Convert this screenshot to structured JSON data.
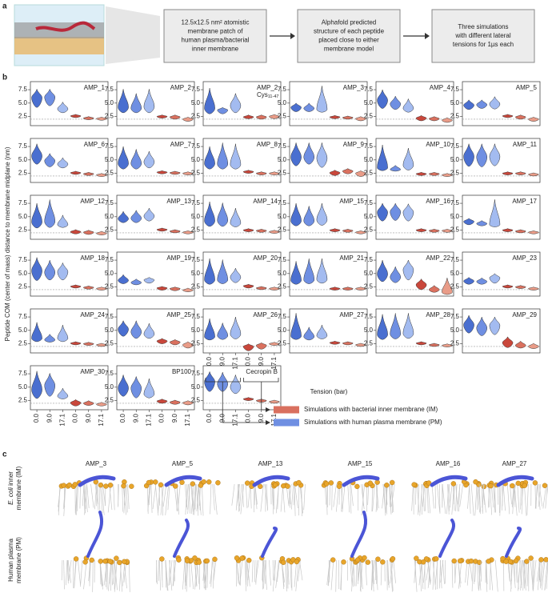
{
  "panel_letters": {
    "a": "a",
    "b": "b",
    "c": "c"
  },
  "panel_a": {
    "boxes": [
      [
        "12.5x12.5 nm² atomistic",
        "membrane patch of",
        "human plasma/bacterial",
        "inner membrane"
      ],
      [
        "Alphafold predicted",
        "structure of each peptide",
        "placed close to either",
        "membrane model"
      ],
      [
        "Three simulations",
        "with different lateral",
        "tensions for 1µs each"
      ]
    ]
  },
  "panel_b": {
    "y_label": "Peptide COM (center of mass) distance to membrane midplane (nm)",
    "x_label": "Tension (bar)",
    "categories": [
      "0.0",
      "9.0",
      "17.1",
      "0.0",
      "9.0",
      "17.1"
    ],
    "colors": [
      "#4a6fd0",
      "#6f8fe2",
      "#a3bbf0",
      "#c9473b",
      "#da715f",
      "#e99c88"
    ],
    "ylim": [
      0.8,
      9.0
    ],
    "yticks": [
      2.5,
      {
        "value": 5,
        "label": "5.0"
      },
      7.5
    ],
    "reference_line": 2.0,
    "legend": [
      {
        "name": "Simulations with bacterial inner membrane (IM)",
        "color": "#d9705f"
      },
      {
        "name": "Simulations with human plasma membrane (PM)",
        "color": "#6f8fe2"
      }
    ]
  },
  "chart_data": [
    {
      "type": "violin",
      "title": "AMP_1",
      "median": [
        6.0,
        6.1,
        3.9,
        2.6,
        2.2,
        2.1
      ],
      "min": [
        4.2,
        4.5,
        3.2,
        2.3,
        1.9,
        1.8
      ],
      "max": [
        7.6,
        7.6,
        5.2,
        2.9,
        2.5,
        2.4
      ]
    },
    {
      "type": "violin",
      "title": "AMP_2",
      "median": [
        4.2,
        4.0,
        4.3,
        2.5,
        2.4,
        2.0
      ],
      "min": [
        3.2,
        3.2,
        3.2,
        2.2,
        2.0,
        1.6
      ],
      "max": [
        7.6,
        6.8,
        7.6,
        2.8,
        2.8,
        2.4
      ]
    },
    {
      "type": "violin",
      "title": "AMP_2",
      "subtitle": "Cys",
      "subtitle_sub": "11-47",
      "median": [
        4.0,
        3.7,
        4.5,
        2.4,
        2.4,
        2.5
      ],
      "min": [
        3.0,
        3.0,
        3.2,
        2.1,
        2.0,
        2.1
      ],
      "max": [
        7.8,
        4.2,
        6.8,
        2.8,
        2.8,
        2.9
      ]
    },
    {
      "type": "violin",
      "title": "AMP_3",
      "median": [
        4.2,
        4.0,
        3.8,
        2.4,
        2.3,
        2.1
      ],
      "min": [
        3.4,
        3.4,
        3.3,
        2.1,
        2.0,
        1.7
      ],
      "max": [
        5.0,
        5.0,
        8.2,
        2.7,
        2.6,
        2.5
      ]
    },
    {
      "type": "violin",
      "title": "AMP_4",
      "median": [
        5.5,
        4.8,
        4.0,
        2.2,
        2.1,
        1.8
      ],
      "min": [
        4.0,
        3.8,
        3.3,
        1.7,
        1.7,
        1.4
      ],
      "max": [
        7.5,
        6.3,
        5.8,
        2.7,
        2.5,
        2.3
      ]
    },
    {
      "type": "violin",
      "title": "AMP_5",
      "median": [
        4.6,
        4.7,
        4.8,
        2.6,
        2.4,
        2.0
      ],
      "min": [
        3.8,
        4.0,
        3.9,
        2.3,
        2.0,
        1.6
      ],
      "max": [
        5.6,
        5.6,
        6.2,
        2.9,
        2.8,
        2.4
      ]
    },
    {
      "type": "violin",
      "title": "AMP_6",
      "median": [
        5.7,
        4.8,
        4.2,
        2.6,
        2.4,
        2.2
      ],
      "min": [
        4.2,
        3.7,
        3.5,
        2.3,
        2.1,
        1.9
      ],
      "max": [
        8.0,
        6.2,
        5.4,
        2.9,
        2.7,
        2.5
      ]
    },
    {
      "type": "violin",
      "title": "AMP_7",
      "median": [
        4.3,
        4.3,
        4.6,
        2.7,
        2.6,
        2.5
      ],
      "min": [
        3.3,
        3.3,
        3.5,
        2.4,
        2.3,
        2.2
      ],
      "max": [
        7.5,
        7.0,
        6.6,
        3.0,
        2.9,
        2.8
      ]
    },
    {
      "type": "violin",
      "title": "AMP_8",
      "median": [
        4.3,
        4.2,
        4.1,
        2.8,
        2.5,
        2.5
      ],
      "min": [
        3.3,
        3.3,
        3.3,
        2.5,
        2.2,
        2.2
      ],
      "max": [
        7.5,
        8.2,
        8.0,
        3.1,
        2.8,
        2.8
      ]
    },
    {
      "type": "violin",
      "title": "AMP_9",
      "median": [
        5.5,
        5.5,
        5.3,
        2.6,
        2.9,
        2.5
      ],
      "min": [
        3.9,
        4.2,
        3.6,
        2.1,
        2.4,
        1.9
      ],
      "max": [
        8.2,
        8.2,
        8.2,
        3.1,
        3.4,
        3.0
      ]
    },
    {
      "type": "violin",
      "title": "AMP_10",
      "median": [
        3.5,
        3.2,
        4.0,
        2.4,
        2.4,
        2.2
      ],
      "min": [
        3.0,
        2.9,
        3.1,
        2.1,
        2.1,
        1.9
      ],
      "max": [
        7.8,
        4.0,
        7.2,
        2.7,
        2.7,
        2.5
      ]
    },
    {
      "type": "violin",
      "title": "AMP_11",
      "median": [
        5.6,
        5.5,
        5.6,
        2.5,
        2.5,
        2.3
      ],
      "min": [
        3.8,
        3.7,
        3.9,
        2.2,
        2.2,
        2.0
      ],
      "max": [
        8.0,
        8.0,
        8.0,
        2.8,
        2.8,
        2.6
      ]
    },
    {
      "type": "violin",
      "title": "AMP_12",
      "median": [
        4.0,
        4.1,
        3.5,
        2.2,
        2.1,
        1.9
      ],
      "min": [
        2.9,
        3.0,
        3.0,
        1.8,
        1.7,
        1.6
      ],
      "max": [
        7.5,
        8.2,
        5.3,
        2.6,
        2.5,
        2.3
      ]
    },
    {
      "type": "violin",
      "title": "AMP_13",
      "median": [
        4.6,
        4.7,
        5.1,
        2.6,
        2.3,
        2.1
      ],
      "min": [
        3.9,
        3.9,
        4.2,
        2.3,
        2.0,
        1.8
      ],
      "max": [
        6.0,
        6.2,
        6.6,
        2.9,
        2.6,
        2.4
      ]
    },
    {
      "type": "violin",
      "title": "AMP_14",
      "median": [
        4.2,
        4.3,
        3.8,
        2.5,
        2.4,
        2.2
      ],
      "min": [
        3.2,
        3.2,
        3.1,
        2.2,
        2.1,
        1.9
      ],
      "max": [
        7.8,
        7.6,
        6.6,
        2.8,
        2.7,
        2.5
      ]
    },
    {
      "type": "violin",
      "title": "AMP_15",
      "median": [
        4.2,
        4.2,
        4.4,
        2.5,
        2.4,
        2.1
      ],
      "min": [
        3.3,
        3.3,
        3.4,
        2.2,
        2.1,
        1.8
      ],
      "max": [
        7.5,
        7.0,
        7.5,
        2.8,
        2.7,
        2.4
      ]
    },
    {
      "type": "violin",
      "title": "AMP_16",
      "median": [
        5.8,
        5.9,
        5.8,
        2.5,
        2.4,
        2.4
      ],
      "min": [
        4.2,
        4.3,
        4.2,
        2.2,
        2.1,
        2.1
      ],
      "max": [
        7.5,
        7.5,
        7.4,
        2.8,
        2.7,
        2.7
      ]
    },
    {
      "type": "violin",
      "title": "AMP_17",
      "median": [
        4.1,
        3.7,
        3.5,
        2.5,
        2.3,
        2.1
      ],
      "min": [
        3.5,
        3.3,
        3.1,
        2.2,
        2.0,
        1.8
      ],
      "max": [
        4.7,
        4.3,
        8.2,
        2.8,
        2.6,
        2.4
      ]
    },
    {
      "type": "violin",
      "title": "AMP_18",
      "median": [
        5.5,
        5.2,
        5.3,
        2.6,
        2.4,
        2.2
      ],
      "min": [
        3.7,
        3.8,
        3.8,
        2.3,
        2.1,
        1.9
      ],
      "max": [
        8.0,
        7.5,
        7.0,
        2.9,
        2.7,
        2.5
      ]
    },
    {
      "type": "violin",
      "title": "AMP_19",
      "median": [
        3.7,
        3.3,
        3.8,
        2.3,
        2.2,
        1.9
      ],
      "min": [
        3.1,
        2.9,
        3.2,
        1.9,
        1.8,
        1.6
      ],
      "max": [
        4.8,
        4.0,
        4.3,
        2.6,
        2.5,
        2.3
      ]
    },
    {
      "type": "violin",
      "title": "AMP_20",
      "median": [
        3.8,
        3.8,
        4.3,
        2.7,
        2.3,
        2.2
      ],
      "min": [
        3.0,
        3.1,
        3.3,
        2.3,
        2.0,
        1.9
      ],
      "max": [
        7.8,
        7.6,
        6.0,
        3.0,
        2.6,
        2.5
      ]
    },
    {
      "type": "violin",
      "title": "AMP_21",
      "median": [
        3.7,
        3.8,
        3.9,
        2.2,
        2.2,
        2.2
      ],
      "min": [
        3.0,
        3.1,
        3.2,
        1.9,
        1.9,
        1.9
      ],
      "max": [
        7.3,
        7.8,
        7.8,
        2.5,
        2.5,
        2.5
      ]
    },
    {
      "type": "violin",
      "title": "AMP_22",
      "median": [
        4.9,
        4.3,
        5.7,
        2.9,
        2.0,
        1.5
      ],
      "min": [
        3.5,
        3.3,
        3.8,
        2.0,
        1.5,
        1.1
      ],
      "max": [
        7.5,
        6.3,
        7.5,
        4.0,
        2.8,
        4.2
      ]
    },
    {
      "type": "violin",
      "title": "AMP_23",
      "median": [
        3.6,
        3.5,
        4.2,
        2.6,
        2.5,
        2.2
      ],
      "min": [
        3.0,
        3.0,
        3.2,
        2.3,
        2.2,
        1.9
      ],
      "max": [
        4.3,
        4.2,
        5.0,
        2.9,
        2.8,
        2.5
      ]
    },
    {
      "type": "violin",
      "title": "AMP_24",
      "median": [
        3.5,
        3.2,
        3.5,
        2.6,
        2.5,
        2.3
      ],
      "min": [
        2.9,
        2.8,
        2.9,
        2.3,
        2.2,
        2.0
      ],
      "max": [
        6.5,
        4.3,
        6.0,
        2.9,
        2.8,
        2.6
      ]
    },
    {
      "type": "violin",
      "title": "AMP_25",
      "median": [
        5.2,
        4.7,
        4.3,
        3.0,
        2.8,
        2.3
      ],
      "min": [
        3.9,
        3.5,
        3.5,
        2.5,
        2.3,
        1.7
      ],
      "max": [
        6.8,
        6.8,
        6.3,
        3.5,
        3.3,
        2.9
      ]
    },
    {
      "type": "violin",
      "title": "AMP_26",
      "median": [
        3.8,
        4.0,
        4.3,
        2.0,
        2.2,
        2.5
      ],
      "min": [
        3.2,
        3.3,
        3.4,
        1.2,
        1.5,
        2.2
      ],
      "max": [
        7.2,
        6.4,
        7.5,
        2.5,
        2.7,
        2.8
      ]
    },
    {
      "type": "violin",
      "title": "AMP_27",
      "median": [
        3.9,
        3.8,
        4.0,
        2.7,
        2.6,
        2.3
      ],
      "min": [
        3.3,
        3.2,
        3.4,
        2.4,
        2.3,
        2.0
      ],
      "max": [
        8.2,
        5.6,
        6.0,
        3.0,
        2.9,
        2.6
      ]
    },
    {
      "type": "violin",
      "title": "AMP_28",
      "median": [
        4.2,
        4.3,
        4.4,
        2.6,
        2.3,
        2.2
      ],
      "min": [
        3.3,
        3.4,
        3.5,
        2.3,
        2.0,
        1.9
      ],
      "max": [
        8.0,
        8.2,
        8.2,
        2.9,
        2.6,
        2.5
      ]
    },
    {
      "type": "violin",
      "title": "AMP_29",
      "median": [
        6.0,
        5.4,
        5.9,
        2.7,
        2.2,
        2.0
      ],
      "min": [
        4.5,
        4.0,
        4.2,
        1.8,
        1.7,
        1.6
      ],
      "max": [
        7.8,
        7.5,
        7.5,
        3.8,
        3.0,
        2.6
      ]
    },
    {
      "type": "violin",
      "title": "AMP_30",
      "median": [
        4.5,
        5.3,
        3.3,
        2.1,
        2.0,
        1.8
      ],
      "min": [
        2.9,
        3.3,
        2.8,
        1.5,
        1.6,
        1.5
      ],
      "max": [
        8.0,
        7.6,
        4.8,
        2.7,
        2.5,
        2.2
      ]
    },
    {
      "type": "violin",
      "title": "BP100",
      "median": [
        4.8,
        4.8,
        3.7,
        2.4,
        2.2,
        2.1
      ],
      "min": [
        3.3,
        3.0,
        3.0,
        2.0,
        1.8,
        1.7
      ],
      "max": [
        7.3,
        7.0,
        6.6,
        2.8,
        2.6,
        2.5
      ]
    },
    {
      "type": "violin",
      "title": "Cecropin B",
      "median": [
        6.0,
        5.6,
        5.0,
        2.8,
        2.5,
        2.3
      ],
      "min": [
        4.2,
        4.2,
        3.8,
        2.5,
        2.2,
        2.0
      ],
      "max": [
        7.9,
        7.8,
        7.3,
        3.1,
        2.8,
        2.6
      ]
    }
  ],
  "panel_c": {
    "peptides": [
      "AMP_3",
      "AMP_5",
      "AMP_13",
      "AMP_15",
      "AMP_16",
      "AMP_27"
    ],
    "row_im": {
      "italic": "E. coli",
      "rest": " inner",
      "line2": "membrane (IM)"
    },
    "row_pm": {
      "line1": "Human plasma",
      "line2": "membrane (PM)"
    }
  }
}
